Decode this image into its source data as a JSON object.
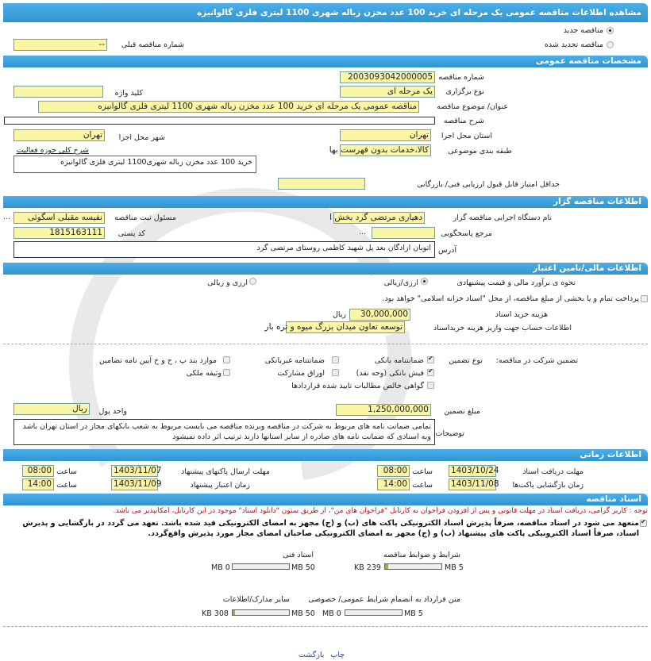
{
  "title": "مشاهده اطلاعات مناقصه عمومی یک مرحله ای خرید 100 عدد مخزن زباله شهری 1100 لیتری فلزی گالوانیزه",
  "tender_type": {
    "new_label": "مناقصه جدید",
    "renewed_label": "مناقصه تجدید شده",
    "selected": "new",
    "prev_number_label": "شماره مناقصه قبلی",
    "prev_number": "--"
  },
  "general": {
    "section": "مشخصات مناقصه عمومی",
    "number_label": "شماره مناقصه",
    "number": "2003093042000005",
    "holding_label": "نوع برگزاری",
    "holding": "یک مرحله ای",
    "keyword_label": "کلید واژه",
    "keyword": "",
    "subject_label": "عنوان/ موضوع مناقصه",
    "subject": "مناقصه عمومی یک مرحله ای خرید 100 عدد مخزن زباله شهری 1100 لیتری فلزی گالوانیزه",
    "desc_label": "شرح مناقصه",
    "desc": "",
    "province_label": "استان محل اجرا",
    "province": "تهران",
    "city_label": "شهر محل اجرا",
    "city": "تهران",
    "category_label": "طبقه بندی موضوعی",
    "category": "کالا،خدمات بدون فهرست بها",
    "activity_label": "شرح کلی حوزه فعالیت",
    "activity": "خرید 100 عدد مخزن زباله شهری1100 لیتری فلزی گالوانیزه",
    "min_score_label": "حداقل امتیاز قابل قبول ارزیابی فنی/ بازرگانی",
    "min_score": ""
  },
  "organizer": {
    "section": "اطلاعات مناقصه گزار",
    "org_label": "نام دستگاه اجرایی مناقصه گزار",
    "org": "دهیاری مرتضی گرد بخش ا",
    "registrar_label": "مسئول ثبت مناقصه",
    "registrar": "نفیسه مقبلی اسگوئی",
    "ref_label": "مرجع پاسخگویی",
    "ref": "",
    "more": "...",
    "postal_label": "کد پستی",
    "postal": "1815163111",
    "address_label": "آدرس",
    "address": "اتوبان ازادگان بعد پل شهید کاظمی روستای مرتضی گرد"
  },
  "finance": {
    "section": "اطلاعات مالی/تامین اعتبار",
    "estimate_label": "نحوه ی برآورد مالی و قیمت پیشنهادی",
    "opt1": "ارزی/ریالی",
    "opt2": "ارزی و ریالی",
    "treasury_label": "پرداخت تمام و یا بخشی از مبلغ مناقصه، از محل \"اسناد خزانه اسلامی\" خواهد بود.",
    "doc_fee_label": "هزینه خرید اسناد",
    "doc_fee": "30,000,000",
    "doc_fee_unit": "ریال",
    "account_label": "اطلاعات حساب جهت واریز هزینه خریداسناد",
    "account": "توسعه تعاون میدان بزرگ میوه و تره بار"
  },
  "guarantee": {
    "label": "تضمین شرکت در مناقصه:",
    "type_label": "نوع تضمین",
    "options": [
      {
        "label": "ضمانتنامه بانکی",
        "checked": true
      },
      {
        "label": "ضمانتنامه غیربانکی",
        "checked": false
      },
      {
        "label": "موارد بند پ ، ح و خ آیین نامه تضامین",
        "checked": false
      },
      {
        "label": "فیش بانکی (وجه نقد)",
        "checked": true
      },
      {
        "label": "اوراق مشارکت",
        "checked": false
      },
      {
        "label": "وثیقه ملکی",
        "checked": false
      },
      {
        "label": "گواهی خالص مطالبات تایید شده قراردادها",
        "checked": false
      }
    ],
    "amount_label": "مبلغ تضمین",
    "amount": "1,250,000,000",
    "currency_label": "واحد پول",
    "currency": "ریال",
    "notes_label": "توضیحات",
    "notes": "تمامی ضمانت نامه های مربوط به شرکت در مناقصه وبرنده مناقصه می بایست مربوط به شعب بانکهای مجاز در استان تهران باشد وبه اسنادی که ضمانت نامه های صادره از سایر استانها دارند ترتیب اثر داده نمیشود"
  },
  "timing": {
    "section": "اطلاعات زمانی",
    "time_label": "ساعت",
    "doc_deadline_label": "مهلت دریافت اسناد",
    "doc_deadline": "1403/10/24",
    "doc_deadline_time": "08:00",
    "submit_label": "مهلت ارسال پاکتهای پیشنهاد",
    "submit": "1403/11/07",
    "submit_time": "08:00",
    "opening_label": "زمان بازگشایی پاکت‌ها",
    "opening": "1403/11/08",
    "opening_time": "14:00",
    "validity_label": "زمان اعتبار پیشنهاد",
    "validity": "1403/11/09",
    "validity_time": "14:00"
  },
  "documents": {
    "section": "اسناد مناقصه",
    "note": "توجه : کاربر گرامی، دریافت اسناد در مهلت قانونی و پس از افزودن فراخوان به کارتابل \"فراخوان های من\"، از طریق ستون \"دانلود اسناد\" موجود در این کارتابل، امکانپذیر می باشد.",
    "commit": "متعهد می شود در اسناد مناقصه، صرفاً پذیرش اسناد الکترونیکی پاکت های (ب) و (ج) مجهز به امضای الکترونیکی قید شده باشد. تعهد می گردد در بازگشایی و پذیرش اسناد، صرفاً اسناد الکترونیکی پاکت های پیشنهاد (ب) و (ج) مجهز به امضای الکترونیکی صاحبان امضای مجاز مورد پذیرش واقع‌گردد.",
    "files": [
      {
        "label": "شرایط و ضوابط مناقصه",
        "size": "239 KB",
        "max": "5 MB",
        "fill": 0.05
      },
      {
        "label": "اسناد فنی",
        "size": "0 MB",
        "max": "50 MB",
        "fill": 0
      },
      {
        "label": "متن قرارداد به انضمام شرایط عمومی/ خصوصی",
        "size": "0 MB",
        "max": "5 MB",
        "fill": 0
      },
      {
        "label": "سایر مدارک/اطلاعات",
        "size": "308 KB",
        "max": "50 MB",
        "fill": 0.006
      }
    ]
  },
  "footer": {
    "print": "چاپ",
    "back": "بازگشت"
  }
}
